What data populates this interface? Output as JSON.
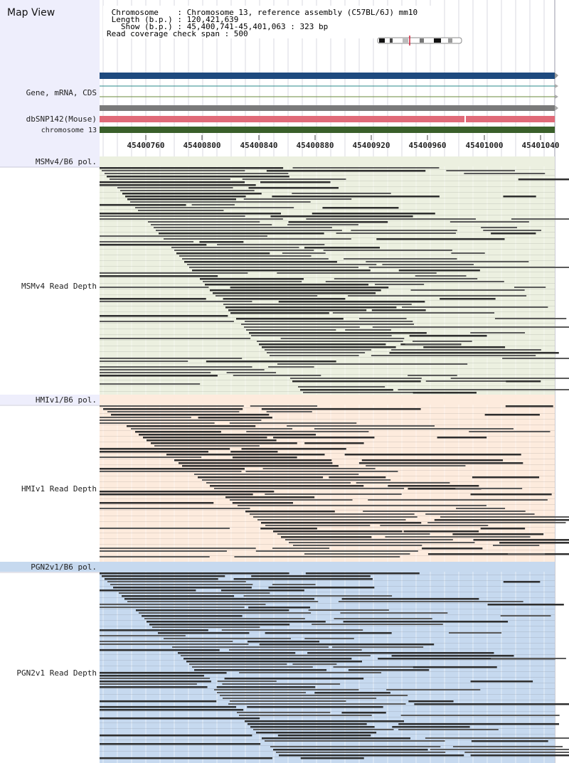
{
  "header": {
    "title": "Map View",
    "info_lines": [
      " Chromosome    : Chromosome 13, reference assembly (C57BL/6J) mm10",
      " Length (b.p.) : 120,421,639",
      "   Show (b.p.) : 45,400,741-45,401,063 : 323 bp",
      "Read coverage check span : 500"
    ]
  },
  "tracks": {
    "gene_label": "Gene, mRNA, CDS",
    "snp_label": "dbSNP142(Mouse)",
    "chrom_label": "chromosome 13"
  },
  "axis": {
    "ticks": [
      "45400760",
      "45400800",
      "45400840",
      "45400880",
      "45400920",
      "45400960",
      "45401000",
      "45401040"
    ]
  },
  "samples": [
    {
      "pol_label": "MSMv4/B6 pol.",
      "depth_label": "MSMv4 Read Depth"
    },
    {
      "pol_label": "HMIv1/B6 pol.",
      "depth_label": "HMIv1 Read Depth"
    },
    {
      "pol_label": "PGN2v1/B6 pol.",
      "depth_label": "PGN2v1 Read Depth"
    }
  ],
  "colors": {
    "label_bg": "#eeeefc",
    "msm_bg": "#ecf0e0",
    "hmi_bg": "#fdebdd",
    "pgn_bg": "#c6d9ef",
    "gene_blue": "#1e4a7e",
    "snp_pink": "#e06a78",
    "chrom_green": "#3a5f2a",
    "read_dark": "#2e2e2e",
    "read_mid": "#5a5a5a"
  }
}
